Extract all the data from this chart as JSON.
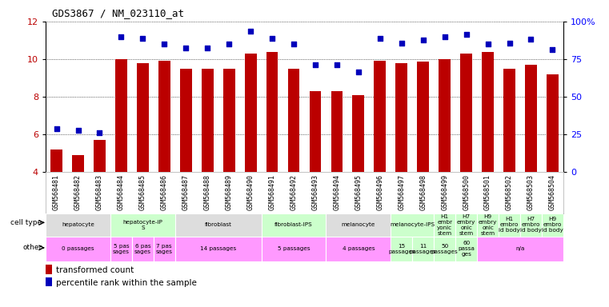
{
  "title": "GDS3867 / NM_023110_at",
  "samples": [
    "GSM568481",
    "GSM568482",
    "GSM568483",
    "GSM568484",
    "GSM568485",
    "GSM568486",
    "GSM568487",
    "GSM568488",
    "GSM568489",
    "GSM568490",
    "GSM568491",
    "GSM568492",
    "GSM568493",
    "GSM568494",
    "GSM568495",
    "GSM568496",
    "GSM568497",
    "GSM568498",
    "GSM568499",
    "GSM568500",
    "GSM568501",
    "GSM568502",
    "GSM568503",
    "GSM568504"
  ],
  "bar_values": [
    5.2,
    4.9,
    5.7,
    10.0,
    9.8,
    9.9,
    9.5,
    9.5,
    9.5,
    10.3,
    10.4,
    9.5,
    8.3,
    8.3,
    8.1,
    9.9,
    9.8,
    9.85,
    10.0,
    10.3,
    10.4,
    9.5,
    9.7,
    9.2
  ],
  "dot_values": [
    6.3,
    6.2,
    6.1,
    11.2,
    11.1,
    10.8,
    10.6,
    10.6,
    10.8,
    11.5,
    11.1,
    10.8,
    9.7,
    9.7,
    9.3,
    11.1,
    10.85,
    11.0,
    11.2,
    11.3,
    10.8,
    10.85,
    11.05,
    10.5
  ],
  "ylim": [
    4,
    12
  ],
  "yticks": [
    4,
    6,
    8,
    10,
    12
  ],
  "bar_color": "#bb0000",
  "dot_color": "#0000bb",
  "cell_type_groups": [
    {
      "label": "hepatocyte",
      "start": 0,
      "end": 3,
      "color": "#dddddd"
    },
    {
      "label": "hepatocyte-iP\nS",
      "start": 3,
      "end": 6,
      "color": "#ccffcc"
    },
    {
      "label": "fibroblast",
      "start": 6,
      "end": 10,
      "color": "#dddddd"
    },
    {
      "label": "fibroblast-IPS",
      "start": 10,
      "end": 13,
      "color": "#ccffcc"
    },
    {
      "label": "melanocyte",
      "start": 13,
      "end": 16,
      "color": "#dddddd"
    },
    {
      "label": "melanocyte-IPS",
      "start": 16,
      "end": 18,
      "color": "#ccffcc"
    },
    {
      "label": "H1\nembr\nyonic\nstem",
      "start": 18,
      "end": 19,
      "color": "#ccffcc"
    },
    {
      "label": "H7\nembry\nonic\nstem",
      "start": 19,
      "end": 20,
      "color": "#ccffcc"
    },
    {
      "label": "H9\nembry\nonic\nstem",
      "start": 20,
      "end": 21,
      "color": "#ccffcc"
    },
    {
      "label": "H1\nembro\nid body",
      "start": 21,
      "end": 22,
      "color": "#ccffcc"
    },
    {
      "label": "H7\nembro\nid body",
      "start": 22,
      "end": 23,
      "color": "#ccffcc"
    },
    {
      "label": "H9\nembro\nid body",
      "start": 23,
      "end": 24,
      "color": "#ccffcc"
    }
  ],
  "other_groups": [
    {
      "label": "0 passages",
      "start": 0,
      "end": 3,
      "color": "#ff99ff"
    },
    {
      "label": "5 pas\nsages",
      "start": 3,
      "end": 4,
      "color": "#ff99ff"
    },
    {
      "label": "6 pas\nsages",
      "start": 4,
      "end": 5,
      "color": "#ff99ff"
    },
    {
      "label": "7 pas\nsages",
      "start": 5,
      "end": 6,
      "color": "#ff99ff"
    },
    {
      "label": "14 passages",
      "start": 6,
      "end": 10,
      "color": "#ff99ff"
    },
    {
      "label": "5 passages",
      "start": 10,
      "end": 13,
      "color": "#ff99ff"
    },
    {
      "label": "4 passages",
      "start": 13,
      "end": 16,
      "color": "#ff99ff"
    },
    {
      "label": "15\npassages",
      "start": 16,
      "end": 17,
      "color": "#ccffcc"
    },
    {
      "label": "11\npassages",
      "start": 17,
      "end": 18,
      "color": "#ccffcc"
    },
    {
      "label": "50\npassages",
      "start": 18,
      "end": 19,
      "color": "#ccffcc"
    },
    {
      "label": "60\npassa\nges",
      "start": 19,
      "end": 20,
      "color": "#ccffcc"
    },
    {
      "label": "n/a",
      "start": 20,
      "end": 24,
      "color": "#ff99ff"
    }
  ],
  "right_ylabels": [
    "0",
    "25",
    "50",
    "75",
    "100%"
  ],
  "right_tick_pos": [
    4,
    6,
    8,
    10,
    12
  ]
}
